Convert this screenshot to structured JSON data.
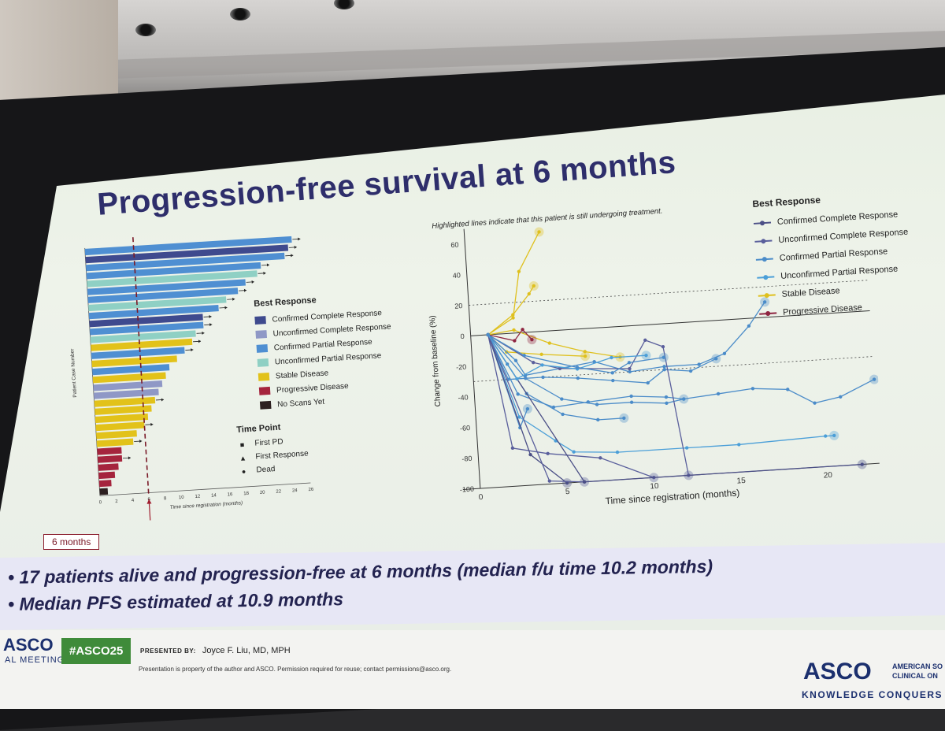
{
  "title": "Progression-free survival at 6 months",
  "swimmer": {
    "y_axis_label": "Patient Case Number",
    "x_axis_label": "Time since registration (months)",
    "x_ticks": [
      "0",
      "2",
      "4",
      "6",
      "8",
      "10",
      "12",
      "14",
      "16",
      "18",
      "20",
      "22",
      "24",
      "26"
    ],
    "legend_title": "Best Response",
    "legend": [
      {
        "label": "Confirmed Complete Response",
        "color": "#3f4a8e"
      },
      {
        "label": "Unconfirmed Complete Response",
        "color": "#8f98c6"
      },
      {
        "label": "Confirmed Partial Response",
        "color": "#4f8fd2"
      },
      {
        "label": "Unconfirmed Partial Response",
        "color": "#8fd0c4"
      },
      {
        "label": "Stable Disease",
        "color": "#e2c21a"
      },
      {
        "label": "Progressive Disease",
        "color": "#a5243d"
      },
      {
        "label": "No Scans Yet",
        "color": "#2d2020"
      }
    ],
    "timepoint_title": "Time Point",
    "timepoints": [
      {
        "marker": "■",
        "label": "First PD"
      },
      {
        "marker": "▲",
        "label": "First Response"
      },
      {
        "marker": "●",
        "label": "Dead"
      }
    ],
    "bars": [
      {
        "months": 25.5,
        "response": 2,
        "arrow": true
      },
      {
        "months": 25.0,
        "response": 0,
        "arrow": true
      },
      {
        "months": 24.5,
        "response": 2,
        "arrow": true
      },
      {
        "months": 21.5,
        "response": 2,
        "arrow": true
      },
      {
        "months": 21.0,
        "response": 3,
        "arrow": true
      },
      {
        "months": 19.5,
        "response": 2,
        "arrow": true
      },
      {
        "months": 18.5,
        "response": 2,
        "arrow": true
      },
      {
        "months": 17.0,
        "response": 3,
        "arrow": true
      },
      {
        "months": 16.0,
        "response": 2,
        "arrow": true
      },
      {
        "months": 14.0,
        "response": 0,
        "arrow": true
      },
      {
        "months": 14.0,
        "response": 2,
        "arrow": true
      },
      {
        "months": 13.0,
        "response": 3,
        "arrow": true
      },
      {
        "months": 12.5,
        "response": 4,
        "arrow": true
      },
      {
        "months": 11.5,
        "response": 2,
        "arrow": true
      },
      {
        "months": 10.5,
        "response": 4,
        "arrow": false
      },
      {
        "months": 9.5,
        "response": 2,
        "arrow": false
      },
      {
        "months": 9.0,
        "response": 4,
        "arrow": false
      },
      {
        "months": 8.5,
        "response": 1,
        "arrow": false
      },
      {
        "months": 8.0,
        "response": 1,
        "arrow": false
      },
      {
        "months": 7.5,
        "response": 4,
        "arrow": true
      },
      {
        "months": 7.0,
        "response": 4,
        "arrow": false
      },
      {
        "months": 6.5,
        "response": 4,
        "arrow": false
      },
      {
        "months": 6.0,
        "response": 4,
        "arrow": true
      },
      {
        "months": 5.0,
        "response": 4,
        "arrow": false
      },
      {
        "months": 4.5,
        "response": 4,
        "arrow": true
      },
      {
        "months": 3.0,
        "response": 5,
        "arrow": false
      },
      {
        "months": 3.0,
        "response": 5,
        "arrow": true
      },
      {
        "months": 2.5,
        "response": 5,
        "arrow": false
      },
      {
        "months": 2.0,
        "response": 5,
        "arrow": false
      },
      {
        "months": 1.5,
        "response": 5,
        "arrow": false
      },
      {
        "months": 1.0,
        "response": 6,
        "arrow": false
      }
    ],
    "cutoff_months": 6
  },
  "six_months_label": "6 months",
  "spider": {
    "note": "Highlighted lines indicate that this patient is still undergoing treatment.",
    "y_axis_label": "Change from baseline (%)",
    "x_axis_label": "Time since registration (months)",
    "y_ticks": [
      "60",
      "40",
      "20",
      "0",
      "-20",
      "-40",
      "-60",
      "-80",
      "-100"
    ],
    "x_ticks": [
      "0",
      "5",
      "10",
      "15",
      "20"
    ],
    "ylim": [
      -100,
      70
    ],
    "xlim": [
      -1,
      23
    ],
    "ref_lines": [
      20,
      -30
    ],
    "legend_title": "Best Response",
    "legend": [
      {
        "label": "Confirmed Complete Response",
        "color": "#4b4f86"
      },
      {
        "label": "Unconfirmed Complete Response",
        "color": "#5a5f9c"
      },
      {
        "label": "Confirmed Partial Response",
        "color": "#4b8cc9"
      },
      {
        "label": "Unconfirmed Partial Response",
        "color": "#4b9fd8"
      },
      {
        "label": "Stable Disease",
        "color": "#dfc01e"
      },
      {
        "label": "Progressive Disease",
        "color": "#8e2440"
      }
    ],
    "series": [
      {
        "response": 4,
        "points": [
          [
            1,
            0
          ],
          [
            2.5,
            10
          ],
          [
            3,
            40
          ],
          [
            4.3,
            65
          ]
        ]
      },
      {
        "response": 4,
        "points": [
          [
            1,
            0
          ],
          [
            2.5,
            12
          ],
          [
            3.5,
            25
          ],
          [
            3.8,
            30
          ]
        ]
      },
      {
        "response": 4,
        "points": [
          [
            1,
            0
          ],
          [
            2.5,
            2
          ],
          [
            4.5,
            -8
          ],
          [
            6.5,
            -15
          ],
          [
            8.5,
            -20
          ]
        ]
      },
      {
        "response": 4,
        "points": [
          [
            1,
            0
          ],
          [
            2,
            -12
          ],
          [
            4,
            -15
          ],
          [
            6.5,
            -18
          ]
        ]
      },
      {
        "response": 5,
        "points": [
          [
            1,
            0
          ],
          [
            2.5,
            -5
          ],
          [
            3,
            2
          ],
          [
            3.5,
            -5
          ]
        ]
      },
      {
        "response": 2,
        "points": [
          [
            1,
            0
          ],
          [
            2.5,
            -18
          ],
          [
            3,
            -28
          ],
          [
            5,
            -25
          ],
          [
            7,
            -22
          ],
          [
            9,
            -30
          ],
          [
            11,
            -28
          ],
          [
            13,
            -28
          ],
          [
            14.5,
            -22
          ],
          [
            16,
            -5
          ],
          [
            17,
            10
          ]
        ]
      },
      {
        "response": 2,
        "points": [
          [
            1,
            0
          ],
          [
            2,
            -30
          ],
          [
            4,
            -30
          ],
          [
            6,
            -32
          ],
          [
            8,
            -35
          ],
          [
            10,
            -38
          ],
          [
            11,
            -30
          ],
          [
            12.5,
            -32
          ],
          [
            14,
            -25
          ]
        ]
      },
      {
        "response": 2,
        "points": [
          [
            1,
            0
          ],
          [
            2.5,
            -40
          ],
          [
            4.5,
            -50
          ],
          [
            6.5,
            -48
          ],
          [
            9,
            -46
          ],
          [
            11,
            -48
          ],
          [
            12,
            -50
          ],
          [
            14,
            -48
          ],
          [
            16,
            -46
          ],
          [
            18,
            -48
          ],
          [
            19.5,
            -58
          ],
          [
            21,
            -55
          ],
          [
            23,
            -45
          ]
        ]
      },
      {
        "response": 2,
        "points": [
          [
            1,
            0
          ],
          [
            2,
            -20
          ],
          [
            3,
            -40
          ],
          [
            5,
            -55
          ],
          [
            7,
            -60
          ],
          [
            8.5,
            -60
          ]
        ]
      },
      {
        "response": 2,
        "points": [
          [
            1,
            0
          ],
          [
            2.5,
            -62
          ],
          [
            3,
            -50
          ]
        ]
      },
      {
        "response": 3,
        "points": [
          [
            1,
            0
          ],
          [
            2.5,
            -55
          ],
          [
            4.5,
            -72
          ],
          [
            5.5,
            -80
          ],
          [
            8,
            -82
          ],
          [
            12,
            -82
          ],
          [
            15,
            -82
          ],
          [
            20,
            -80
          ],
          [
            20.5,
            -80
          ]
        ]
      },
      {
        "response": 2,
        "points": [
          [
            1,
            0
          ],
          [
            3,
            -30
          ],
          [
            5,
            -45
          ],
          [
            7,
            -50
          ],
          [
            9,
            -50
          ],
          [
            11,
            -52
          ],
          [
            12,
            -50
          ]
        ]
      },
      {
        "response": 1,
        "points": [
          [
            1,
            0
          ],
          [
            2,
            -75
          ],
          [
            4,
            -80
          ],
          [
            7,
            -85
          ],
          [
            10,
            -100
          ]
        ]
      },
      {
        "response": 1,
        "points": [
          [
            1,
            0
          ],
          [
            3.5,
            -20
          ],
          [
            5,
            -25
          ],
          [
            9,
            -28
          ],
          [
            10,
            -10
          ],
          [
            11,
            -15
          ],
          [
            12,
            -100
          ]
        ]
      },
      {
        "response": 0,
        "points": [
          [
            1,
            0
          ],
          [
            3,
            -80
          ],
          [
            5,
            -100
          ]
        ]
      },
      {
        "response": 1,
        "points": [
          [
            1,
            0
          ],
          [
            4,
            -98
          ],
          [
            6,
            -100
          ]
        ]
      },
      {
        "response": 0,
        "points": [
          [
            1,
            0
          ],
          [
            6,
            -100
          ],
          [
            22,
            -100
          ]
        ]
      },
      {
        "response": 3,
        "points": [
          [
            1,
            0
          ],
          [
            2.5,
            -30
          ],
          [
            4,
            -22
          ],
          [
            6,
            -26
          ],
          [
            8,
            -20
          ],
          [
            10,
            -20
          ]
        ]
      },
      {
        "response": 2,
        "points": [
          [
            1,
            0
          ],
          [
            3,
            -15
          ],
          [
            6,
            -25
          ],
          [
            8,
            -30
          ],
          [
            9,
            -24
          ],
          [
            11,
            -22
          ]
        ]
      }
    ]
  },
  "bullets": [
    "17 patients alive and progression-free at 6 months (median f/u time 10.2 months)",
    "Median PFS estimated at 10.9 months"
  ],
  "footer": {
    "asco_left": "ASCO",
    "annual": "AL MEETING",
    "hashtag": "#ASCO25",
    "presented_by_label": "PRESENTED BY:",
    "presenter": "Joyce F. Liu, MD, MPH",
    "disclaimer": "Presentation is property of the author and ASCO. Permission required for reuse; contact permissions@asco.org.",
    "asco_right": "ASCO",
    "asco_sub_1": "AMERICAN SO",
    "asco_sub_2": "CLINICAL ON",
    "asco_tagline": "KNOWLEDGE CONQUERS C"
  }
}
